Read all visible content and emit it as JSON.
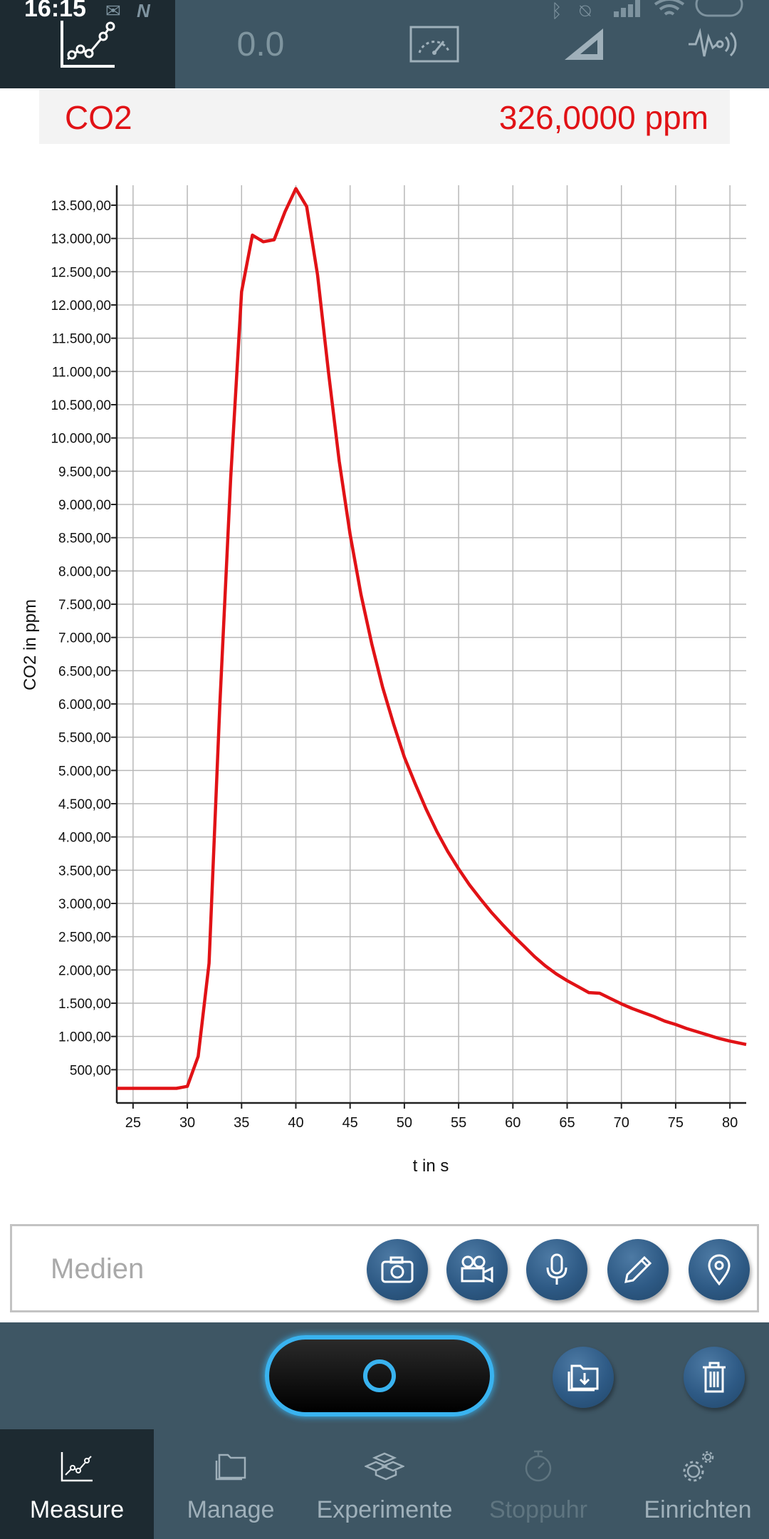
{
  "status_bar": {
    "time": "16:15"
  },
  "toolbar": {
    "value_display": "0.0"
  },
  "sensor": {
    "name": "CO2",
    "value": "326,0000 ppm",
    "color": "#e11216"
  },
  "chart_data": {
    "type": "line",
    "xlabel": "t in s",
    "ylabel": "CO2 in ppm",
    "xlim": [
      23.5,
      81.5
    ],
    "ylim": [
      0,
      13800
    ],
    "x_ticks": [
      25,
      30,
      35,
      40,
      45,
      50,
      55,
      60,
      65,
      70,
      75,
      80
    ],
    "y_ticks": [
      500,
      1000,
      1500,
      2000,
      2500,
      3000,
      3500,
      4000,
      4500,
      5000,
      5500,
      6000,
      6500,
      7000,
      7500,
      8000,
      8500,
      9000,
      9500,
      10000,
      10500,
      11000,
      11500,
      12000,
      12500,
      13000,
      13500
    ],
    "y_tick_labels": [
      "500,00",
      "1.000,00",
      "1.500,00",
      "2.000,00",
      "2.500,00",
      "3.000,00",
      "3.500,00",
      "4.000,00",
      "4.500,00",
      "5.000,00",
      "5.500,00",
      "6.000,00",
      "6.500,00",
      "7.000,00",
      "7.500,00",
      "8.000,00",
      "8.500,00",
      "9.000,00",
      "9.500,00",
      "10.000,00",
      "10.500,00",
      "11.000,00",
      "11.500,00",
      "12.000,00",
      "12.500,00",
      "13.000,00",
      "13.500,00"
    ],
    "grid": true,
    "series": [
      {
        "color": "#e11216",
        "x": [
          23.5,
          26,
          28,
          29,
          30,
          31,
          32,
          33,
          34,
          35,
          36,
          37,
          38,
          39,
          40,
          41,
          42,
          43,
          44,
          45,
          46,
          47,
          48,
          49,
          50,
          51,
          52,
          53,
          54,
          55,
          56,
          57,
          58,
          59,
          60,
          61,
          62,
          63,
          64,
          65,
          66,
          67,
          68,
          69,
          70,
          71,
          72,
          73,
          74,
          75,
          76,
          77,
          78,
          79,
          80,
          81.5
        ],
        "y": [
          220,
          220,
          220,
          220,
          250,
          700,
          2100,
          6000,
          9400,
          12200,
          13050,
          12950,
          12980,
          13400,
          13750,
          13480,
          12450,
          11000,
          9650,
          8550,
          7650,
          6900,
          6250,
          5700,
          5200,
          4800,
          4420,
          4080,
          3780,
          3520,
          3280,
          3070,
          2870,
          2690,
          2520,
          2360,
          2200,
          2060,
          1940,
          1840,
          1750,
          1660,
          1650,
          1570,
          1490,
          1420,
          1360,
          1300,
          1230,
          1180,
          1120,
          1070,
          1020,
          970,
          930,
          880
        ]
      }
    ]
  },
  "media": {
    "label": "Medien",
    "buttons": [
      "camera-icon",
      "video-camera-icon",
      "microphone-icon",
      "pencil-icon",
      "location-pin-icon"
    ]
  },
  "controls": {
    "buttons": [
      "save-folder-icon",
      "trash-icon"
    ]
  },
  "nav": {
    "items": [
      {
        "label": "Measure",
        "icon": "line-chart-icon"
      },
      {
        "label": "Manage",
        "icon": "folder-icon"
      },
      {
        "label": "Experimente",
        "icon": "cubes-icon"
      },
      {
        "label": "Stoppuhr",
        "icon": "stopwatch-icon"
      },
      {
        "label": "Einrichten",
        "icon": "gears-icon"
      }
    ]
  }
}
